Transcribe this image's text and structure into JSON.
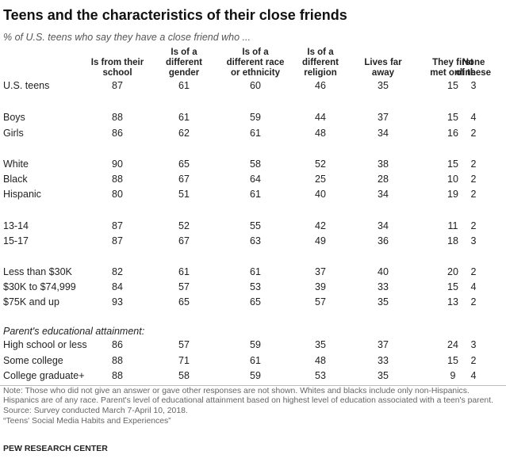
{
  "title": "Teens and the characteristics of their close friends",
  "subtitle": "% of U.S. teens who say they have a close friend who ...",
  "chart_data": {
    "type": "table",
    "columns": [
      [
        "Is from their",
        "school"
      ],
      [
        "Is of a",
        "different",
        "gender"
      ],
      [
        "Is of a",
        "different race",
        "or ethnicity"
      ],
      [
        "Is of a",
        "different",
        "religion"
      ],
      [
        "Lives far",
        "away"
      ],
      [
        "They first",
        "met online"
      ],
      [
        "None",
        "of these"
      ]
    ],
    "rows": [
      {
        "label": "U.S. teens",
        "values": [
          87,
          61,
          60,
          46,
          35,
          15,
          3
        ]
      },
      {
        "label": "Boys",
        "values": [
          88,
          61,
          59,
          44,
          37,
          15,
          4
        ]
      },
      {
        "label": "Girls",
        "values": [
          86,
          62,
          61,
          48,
          34,
          16,
          2
        ]
      },
      {
        "label": "White",
        "values": [
          90,
          65,
          58,
          52,
          38,
          15,
          2
        ]
      },
      {
        "label": "Black",
        "values": [
          88,
          67,
          64,
          25,
          28,
          10,
          2
        ]
      },
      {
        "label": "Hispanic",
        "values": [
          80,
          51,
          61,
          40,
          34,
          19,
          2
        ]
      },
      {
        "label": "13-14",
        "values": [
          87,
          52,
          55,
          42,
          34,
          11,
          2
        ]
      },
      {
        "label": "15-17",
        "values": [
          87,
          67,
          63,
          49,
          36,
          18,
          3
        ]
      },
      {
        "label": "Less than $30K",
        "values": [
          82,
          61,
          61,
          37,
          40,
          20,
          2
        ]
      },
      {
        "label": "$30K to $74,999",
        "values": [
          84,
          57,
          53,
          39,
          33,
          15,
          4
        ]
      },
      {
        "label": "$75K and up",
        "values": [
          93,
          65,
          65,
          57,
          35,
          13,
          2
        ]
      },
      {
        "label": "High school or less",
        "values": [
          86,
          57,
          59,
          35,
          37,
          24,
          3
        ]
      },
      {
        "label": "Some college",
        "values": [
          88,
          71,
          61,
          48,
          33,
          15,
          2
        ]
      },
      {
        "label": "College graduate+",
        "values": [
          88,
          58,
          59,
          53,
          35,
          9,
          4
        ]
      }
    ],
    "section_label": "Parent's educational attainment:"
  },
  "notes": [
    "Note: Those who did not give an answer or gave other responses are not shown. Whites and blacks include only non-Hispanics. Hispanics are of any race. Parent's level of educational attainment based on highest level of education associated with a teen's parent.",
    "Source: Survey conducted March 7-April 10, 2018.",
    "“Teens' Social Media Habits and Experiences”"
  ],
  "brand": "PEW RESEARCH CENTER"
}
